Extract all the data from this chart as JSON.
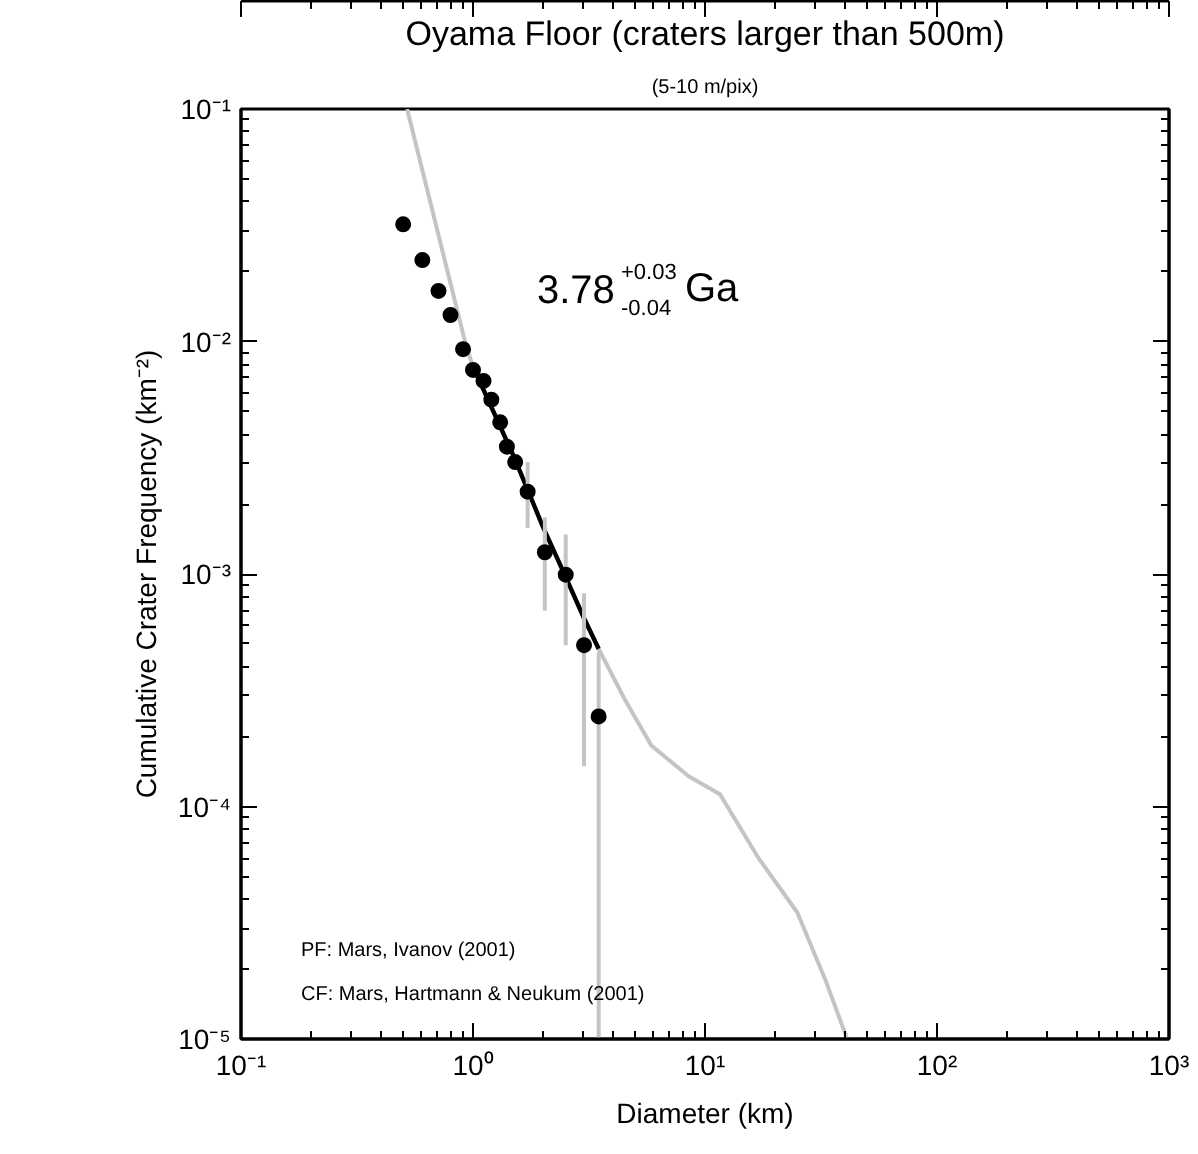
{
  "chart_data": {
    "type": "scatter",
    "title": "Oyama Floor (craters larger than 500m)",
    "subtitle": "(5-10 m/pix)",
    "xlabel": "Diameter (km)",
    "ylabel": "Cumulative Crater Frequency (km⁻²)",
    "log": "xy",
    "grid": false,
    "xlim": [
      0.1,
      1000
    ],
    "ylim": [
      1e-05,
      0.1
    ],
    "xticks": [
      {
        "value": 0.1,
        "label": "10⁻¹"
      },
      {
        "value": 1,
        "label": "10⁰"
      },
      {
        "value": 10,
        "label": "10¹"
      },
      {
        "value": 100,
        "label": "10²"
      },
      {
        "value": 1000,
        "label": "10³"
      }
    ],
    "yticks": [
      {
        "value": 1e-05,
        "label": "10⁻⁵"
      },
      {
        "value": 0.0001,
        "label": "10⁻⁴"
      },
      {
        "value": 0.001,
        "label": "10⁻³"
      },
      {
        "value": 0.01,
        "label": "10⁻²"
      },
      {
        "value": 0.1,
        "label": "10⁻¹"
      }
    ],
    "series": [
      {
        "type": "line",
        "color": "#c4c4c4",
        "marker": "none",
        "line_style": "solid",
        "x": [
          0.52,
          0.93,
          1.0,
          1.5,
          2.0,
          2.5,
          3.0,
          3.48,
          4.5,
          5.87,
          8.5,
          11.6,
          17,
          25,
          33,
          41
        ],
        "values": [
          0.1,
          0.00973,
          0.0078,
          0.0032,
          0.0016,
          0.00098,
          0.00065,
          0.000477,
          0.00029,
          0.000183,
          0.000135,
          0.000113,
          6e-05,
          3.5e-05,
          1.8e-05,
          1e-05
        ]
      },
      {
        "type": "line",
        "color": "#000000",
        "marker": "none",
        "line_style": "solid",
        "x": [
          1.0,
          1.5,
          2.0,
          2.5,
          3.0,
          3.48
        ],
        "values": [
          0.0078,
          0.0032,
          0.0016,
          0.00098,
          0.00065,
          0.000477
        ]
      },
      {
        "color": "#000000",
        "marker": "circle",
        "x": [
          0.5,
          0.605,
          0.71,
          0.8,
          0.906,
          1.0,
          1.11,
          1.2,
          1.31,
          1.4,
          1.52,
          1.72,
          2.04,
          2.51,
          3.01,
          3.48
        ],
        "values": [
          0.0319,
          0.0224,
          0.0165,
          0.013,
          0.00927,
          0.00755,
          0.00677,
          0.00562,
          0.00449,
          0.00353,
          0.00303,
          0.00226,
          0.00124,
          0.000993,
          0.000494,
          0.000244
        ],
        "errors": [
          null,
          null,
          null,
          null,
          null,
          null,
          null,
          null,
          null,
          null,
          null,
          [
            0.00158,
            0.00303
          ],
          [
            0.000695,
            0.00175
          ],
          [
            0.000494,
            0.00148
          ],
          [
            0.000149,
            0.000826
          ],
          [
            1e-05,
            0.000461
          ]
        ]
      }
    ],
    "annotations": [
      "3.78$^{+0.03}$$_{-0.04}$ Ga",
      "PF: Mars, Ivanov (2001)",
      "CF: Mars, Hartmann & Neukum (2001)"
    ]
  }
}
